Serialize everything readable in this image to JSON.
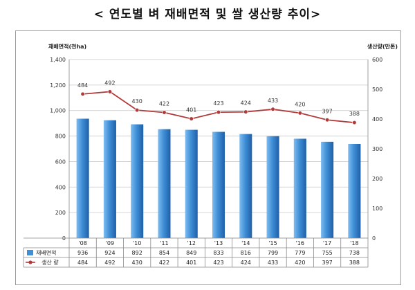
{
  "title": "< 연도별 벼 재배면적 및 쌀 생산량 추이>",
  "chart_data": {
    "type": "bar",
    "categories": [
      "'08",
      "'09",
      "'10",
      "'11",
      "'12",
      "'13",
      "'14",
      "'15",
      "'16",
      "'17",
      "'18"
    ],
    "y_left": {
      "label": "재배면적(천ha)",
      "ticks": [
        "0",
        "200",
        "400",
        "600",
        "800",
        "1,000",
        "1,200",
        "1,400"
      ],
      "ylim": [
        0,
        1400
      ]
    },
    "y_right": {
      "label": "생산량(만톤)",
      "ticks": [
        "0",
        "100",
        "200",
        "300",
        "400",
        "500",
        "600"
      ],
      "ylim": [
        0,
        600
      ]
    },
    "series": [
      {
        "name": "재배면적",
        "kind": "bar",
        "axis": "left",
        "color": "#3f8fd6",
        "values": [
          936,
          924,
          892,
          854,
          849,
          833,
          816,
          799,
          779,
          755,
          738
        ],
        "labels": [
          "936",
          "924",
          "892",
          "854",
          "849",
          "833",
          "816",
          "799",
          "779",
          "755",
          "738"
        ]
      },
      {
        "name": "생산 량",
        "kind": "line",
        "axis": "right",
        "color": "#b03a3a",
        "values": [
          484,
          492,
          430,
          422,
          401,
          423,
          424,
          433,
          420,
          397,
          388
        ],
        "labels": [
          "484",
          "492",
          "430",
          "422",
          "401",
          "423",
          "424",
          "433",
          "420",
          "397",
          "388"
        ]
      }
    ],
    "grid": true,
    "legend": "data-table"
  }
}
